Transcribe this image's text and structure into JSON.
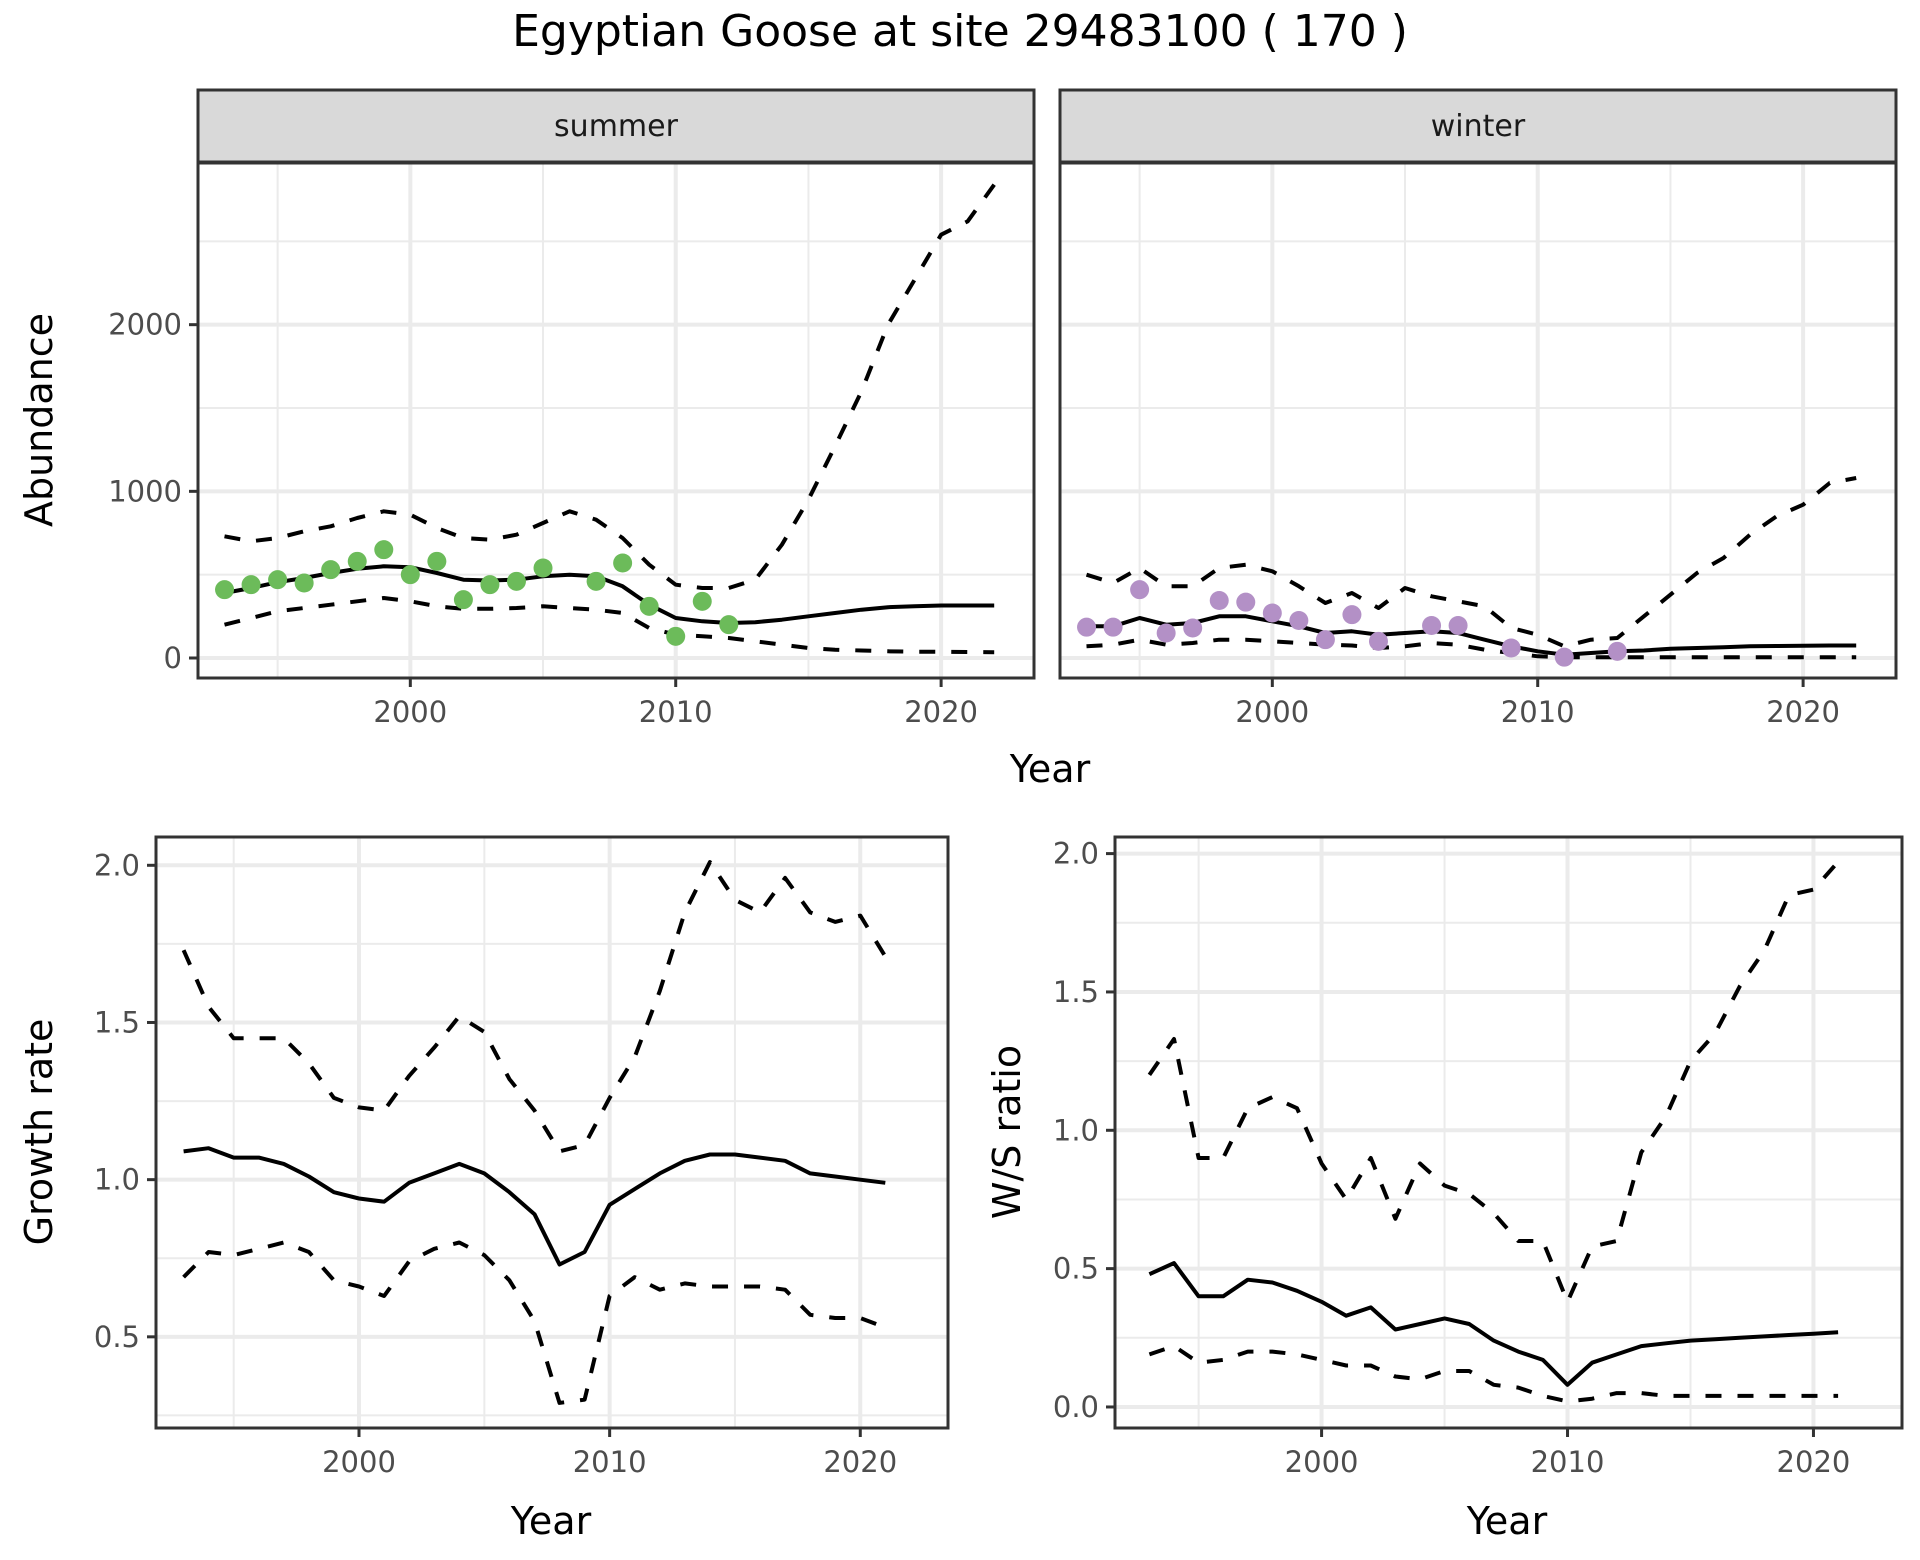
{
  "title": "Egyptian Goose at site 29483100 ( 170 )",
  "colors": {
    "summer_points": "#6cbb5a",
    "winter_points": "#b390c6",
    "line": "#000000",
    "strip_fill": "#d9d9d9",
    "grid": "#ebebeb"
  },
  "chart_data": [
    {
      "type": "line",
      "name": "abundance",
      "facets": [
        "summer",
        "winter"
      ],
      "xlabel": "Year",
      "ylabel": "Abundance",
      "xticks": [
        2000,
        2010,
        2020
      ],
      "yticks": [
        0,
        1000,
        2000
      ],
      "xlim": [
        1992,
        2023.5
      ],
      "ylim": [
        -120,
        2970
      ],
      "panels": {
        "summer": {
          "label": "summer",
          "points": {
            "x": [
              1993,
              1994,
              1995,
              1996,
              1997,
              1998,
              1999,
              2000,
              2001,
              2002,
              2003,
              2004,
              2005,
              2007,
              2008,
              2009,
              2010,
              2011,
              2012
            ],
            "y": [
              410,
              440,
              470,
              450,
              530,
              580,
              650,
              500,
              580,
              350,
              440,
              460,
              540,
              460,
              570,
              310,
              130,
              340,
              200
            ]
          },
          "fit": {
            "x": [
              1993,
              1994,
              1995,
              1996,
              1997,
              1998,
              1999,
              2000,
              2001,
              2002,
              2003,
              2004,
              2005,
              2006,
              2007,
              2008,
              2009,
              2010,
              2011,
              2012,
              2013,
              2014,
              2015,
              2016,
              2017,
              2018,
              2019,
              2020,
              2021,
              2022
            ],
            "mid": [
              390,
              420,
              455,
              480,
              510,
              535,
              550,
              545,
              510,
              470,
              465,
              470,
              490,
              500,
              490,
              430,
              320,
              240,
              220,
              210,
              215,
              230,
              250,
              270,
              290,
              305,
              310,
              315,
              315,
              315
            ],
            "upper": [
              730,
              700,
              720,
              760,
              790,
              840,
              880,
              860,
              780,
              720,
              710,
              740,
              810,
              880,
              830,
              720,
              560,
              440,
              420,
              420,
              470,
              680,
              950,
              1270,
              1600,
              2000,
              2270,
              2540,
              2620,
              2840
            ],
            "lower": [
              200,
              240,
              280,
              300,
              320,
              340,
              360,
              340,
              310,
              295,
              295,
              300,
              310,
              300,
              290,
              270,
              180,
              140,
              130,
              120,
              100,
              80,
              60,
              50,
              45,
              40,
              38,
              37,
              36,
              35
            ]
          }
        },
        "winter": {
          "label": "winter",
          "points": {
            "x": [
              1993,
              1994,
              1995,
              1996,
              1997,
              1998,
              1999,
              2000,
              2001,
              2002,
              2003,
              2004,
              2006,
              2007,
              2009,
              2011,
              2013
            ],
            "y": [
              185,
              185,
              410,
              150,
              180,
              345,
              335,
              270,
              225,
              110,
              260,
              100,
              195,
              195,
              60,
              5,
              40
            ]
          },
          "fit": {
            "x": [
              1993,
              1994,
              1995,
              1996,
              1997,
              1998,
              1999,
              2000,
              2001,
              2002,
              2003,
              2004,
              2005,
              2006,
              2007,
              2008,
              2009,
              2010,
              2011,
              2012,
              2013,
              2014,
              2015,
              2016,
              2017,
              2018,
              2019,
              2020,
              2021,
              2022
            ],
            "mid": [
              190,
              190,
              240,
              200,
              210,
              250,
              250,
              220,
              190,
              150,
              160,
              140,
              150,
              160,
              150,
              110,
              70,
              40,
              20,
              30,
              40,
              45,
              55,
              60,
              65,
              70,
              72,
              74,
              75,
              75
            ],
            "upper": [
              500,
              450,
              540,
              430,
              430,
              540,
              560,
              520,
              430,
              330,
              390,
              300,
              420,
              370,
              340,
              310,
              180,
              140,
              70,
              110,
              120,
              250,
              380,
              510,
              600,
              740,
              850,
              920,
              1050,
              1080
            ],
            "lower": [
              70,
              80,
              110,
              80,
              90,
              110,
              110,
              100,
              90,
              80,
              75,
              60,
              70,
              90,
              80,
              50,
              30,
              10,
              5,
              5,
              5,
              5,
              5,
              5,
              5,
              5,
              5,
              5,
              5,
              5
            ]
          }
        }
      }
    },
    {
      "type": "line",
      "name": "growth",
      "xlabel": "Year",
      "ylabel": "Growth rate",
      "xticks": [
        2000,
        2010,
        2020
      ],
      "yticks": [
        0.5,
        1.0,
        1.5,
        2.0
      ],
      "ytick_labels": [
        "0.5",
        "1.0",
        "1.5",
        "2.0"
      ],
      "xlim": [
        1991.9,
        2023.5
      ],
      "ylim": [
        0.21,
        2.09
      ],
      "x": [
        1993,
        1994,
        1995,
        1996,
        1997,
        1998,
        1999,
        2000,
        2001,
        2002,
        2003,
        2004,
        2005,
        2006,
        2007,
        2008,
        2009,
        2010,
        2011,
        2012,
        2013,
        2014,
        2015,
        2016,
        2017,
        2018,
        2019,
        2020,
        2021
      ],
      "mid": [
        1.09,
        1.1,
        1.07,
        1.07,
        1.05,
        1.01,
        0.96,
        0.94,
        0.93,
        0.99,
        1.02,
        1.05,
        1.02,
        0.96,
        0.89,
        0.73,
        0.77,
        0.92,
        0.97,
        1.02,
        1.06,
        1.08,
        1.08,
        1.07,
        1.06,
        1.02,
        1.01,
        1.0,
        0.99
      ],
      "upper": [
        1.73,
        1.55,
        1.45,
        1.45,
        1.45,
        1.37,
        1.26,
        1.23,
        1.22,
        1.33,
        1.42,
        1.52,
        1.47,
        1.32,
        1.22,
        1.09,
        1.11,
        1.26,
        1.39,
        1.6,
        1.85,
        2.01,
        1.89,
        1.85,
        1.96,
        1.85,
        1.82,
        1.84,
        1.71
      ],
      "lower": [
        0.69,
        0.77,
        0.76,
        0.78,
        0.8,
        0.77,
        0.68,
        0.66,
        0.63,
        0.74,
        0.78,
        0.8,
        0.76,
        0.68,
        0.55,
        0.29,
        0.3,
        0.63,
        0.69,
        0.65,
        0.67,
        0.66,
        0.66,
        0.66,
        0.65,
        0.57,
        0.56,
        0.56,
        0.53
      ]
    },
    {
      "type": "line",
      "name": "ws_ratio",
      "xlabel": "Year",
      "ylabel": "W/S ratio",
      "xticks": [
        2000,
        2010,
        2020
      ],
      "yticks": [
        0.0,
        0.5,
        1.0,
        1.5,
        2.0
      ],
      "ytick_labels": [
        "0.0",
        "0.5",
        "1.0",
        "1.5",
        "2.0"
      ],
      "xlim": [
        1991.6,
        2023.6
      ],
      "ylim": [
        -0.076,
        2.06
      ],
      "x": [
        1993,
        1994,
        1995,
        1996,
        1997,
        1998,
        1999,
        2000,
        2001,
        2002,
        2003,
        2004,
        2005,
        2006,
        2007,
        2008,
        2009,
        2010,
        2011,
        2012,
        2013,
        2014,
        2015,
        2016,
        2017,
        2018,
        2019,
        2020,
        2021
      ],
      "mid": [
        0.48,
        0.52,
        0.4,
        0.4,
        0.46,
        0.45,
        0.42,
        0.38,
        0.33,
        0.36,
        0.28,
        0.3,
        0.32,
        0.3,
        0.24,
        0.2,
        0.17,
        0.08,
        0.16,
        0.19,
        0.22,
        0.23,
        0.24,
        0.245,
        0.25,
        0.255,
        0.26,
        0.265,
        0.27
      ],
      "upper": [
        1.2,
        1.33,
        0.9,
        0.9,
        1.08,
        1.12,
        1.08,
        0.88,
        0.75,
        0.9,
        0.68,
        0.88,
        0.8,
        0.77,
        0.7,
        0.6,
        0.6,
        0.38,
        0.58,
        0.6,
        0.92,
        1.05,
        1.25,
        1.35,
        1.52,
        1.65,
        1.85,
        1.87,
        1.97
      ],
      "lower": [
        0.19,
        0.22,
        0.16,
        0.17,
        0.2,
        0.2,
        0.19,
        0.17,
        0.15,
        0.15,
        0.11,
        0.1,
        0.13,
        0.13,
        0.08,
        0.07,
        0.04,
        0.02,
        0.03,
        0.05,
        0.05,
        0.04,
        0.04,
        0.04,
        0.04,
        0.04,
        0.04,
        0.04,
        0.04
      ]
    }
  ]
}
